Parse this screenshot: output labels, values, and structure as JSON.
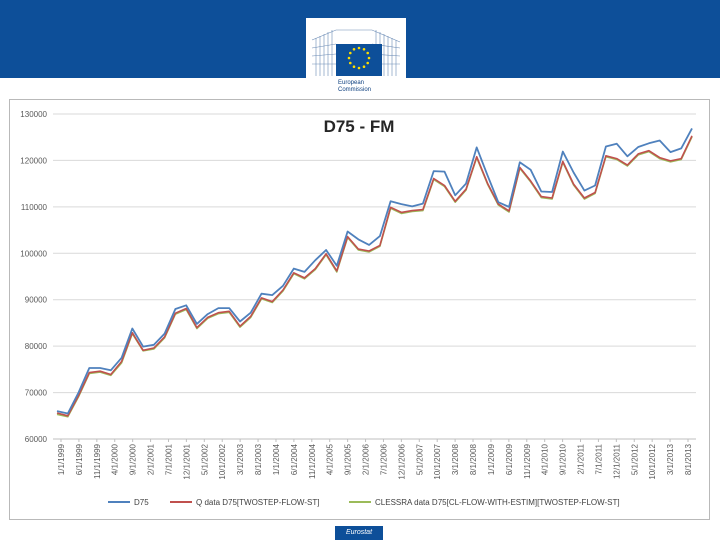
{
  "header": {
    "logo_text": [
      "European",
      "Commission"
    ]
  },
  "footer": {
    "badge": "Eurostat"
  },
  "colors": {
    "band": "#0d4f99",
    "d75": "#4f81bd",
    "qdata": "#c0504d",
    "clessra": "#9bbb59"
  },
  "chart_data": {
    "type": "line",
    "title": "D75 - FM",
    "xlabel": "",
    "ylabel": "",
    "ylim": [
      60000,
      130000
    ],
    "yticks": [
      60000,
      70000,
      80000,
      90000,
      100000,
      110000,
      120000,
      130000
    ],
    "ytick_labels": [
      "60000",
      "70000",
      "80000",
      "90000",
      "100000",
      "110000",
      "120000",
      "130000"
    ],
    "x_tick_labels": [
      "1/1/1999",
      "6/1/1999",
      "11/1/1999",
      "4/1/2000",
      "9/1/2000",
      "2/1/2001",
      "7/1/2001",
      "12/1/2001",
      "5/1/2002",
      "10/1/2002",
      "3/1/2003",
      "8/1/2003",
      "1/1/2004",
      "6/1/2004",
      "11/1/2004",
      "4/1/2005",
      "9/1/2005",
      "2/1/2006",
      "7/1/2006",
      "12/1/2006",
      "5/1/2007",
      "10/1/2007",
      "3/1/2008",
      "8/1/2008",
      "1/1/2009",
      "6/1/2009",
      "11/1/2009",
      "4/1/2010",
      "9/1/2010",
      "2/1/2011",
      "7/1/2011",
      "12/1/2011",
      "5/1/2012",
      "10/1/2012",
      "3/1/2013",
      "8/1/2013"
    ],
    "grid": "horizontal",
    "legend_position": "bottom",
    "series": [
      {
        "name": "D75",
        "color": "#4f81bd",
        "values": [
          66000,
          65500,
          70000,
          75300,
          75300,
          74800,
          77500,
          83800,
          79900,
          80300,
          82700,
          88000,
          88800,
          84800,
          86900,
          88200,
          88200,
          85300,
          87200,
          91300,
          91000,
          93000,
          96700,
          96000,
          98500,
          100700,
          97300,
          104700,
          103000,
          101800,
          103700,
          111200,
          110600,
          110100,
          110700,
          117700,
          117600,
          112500,
          115000,
          122800,
          116800,
          111000,
          110000,
          119600,
          118000,
          113300,
          113200,
          121900,
          117400,
          113500,
          114600,
          123000,
          123600,
          120900,
          122900,
          123700,
          124300,
          121800,
          122600,
          126900
        ]
      },
      {
        "name": "Q data D75[TWOSTEP-FLOW-ST]",
        "color": "#c0504d",
        "values": [
          65600,
          65000,
          69300,
          74300,
          74600,
          73900,
          76700,
          82900,
          79100,
          79600,
          82000,
          87100,
          88100,
          84000,
          86200,
          87200,
          87500,
          84300,
          86400,
          90400,
          89600,
          92100,
          95800,
          94700,
          96700,
          99900,
          96200,
          103600,
          100900,
          100500,
          101700,
          109900,
          108800,
          109200,
          109400,
          116100,
          114600,
          111200,
          113800,
          120800,
          115100,
          110600,
          109100,
          118500,
          115600,
          112200,
          111900,
          119800,
          114900,
          111900,
          113100,
          121000,
          120400,
          119000,
          121400,
          122100,
          120600,
          119900,
          120400,
          125300
        ]
      },
      {
        "name": "CLESSRA data D75[CL-FLOW-WITH-ESTIM][TWOSTEP-FLOW-ST]",
        "color": "#9bbb59",
        "values": [
          65300,
          64800,
          69100,
          74100,
          74400,
          73700,
          76400,
          82700,
          79000,
          79400,
          81800,
          86900,
          87900,
          83800,
          86000,
          87000,
          87300,
          84100,
          86200,
          90200,
          89400,
          91900,
          95600,
          94500,
          96500,
          99700,
          96000,
          103400,
          100700,
          100300,
          101500,
          109700,
          108600,
          109000,
          109200,
          115900,
          114400,
          111000,
          113600,
          120600,
          114900,
          110400,
          108900,
          118300,
          115400,
          112000,
          111700,
          119600,
          114700,
          111700,
          112900,
          120800,
          120200,
          118800,
          121200,
          121900,
          120400,
          119700,
          120200,
          125100
        ]
      }
    ]
  }
}
